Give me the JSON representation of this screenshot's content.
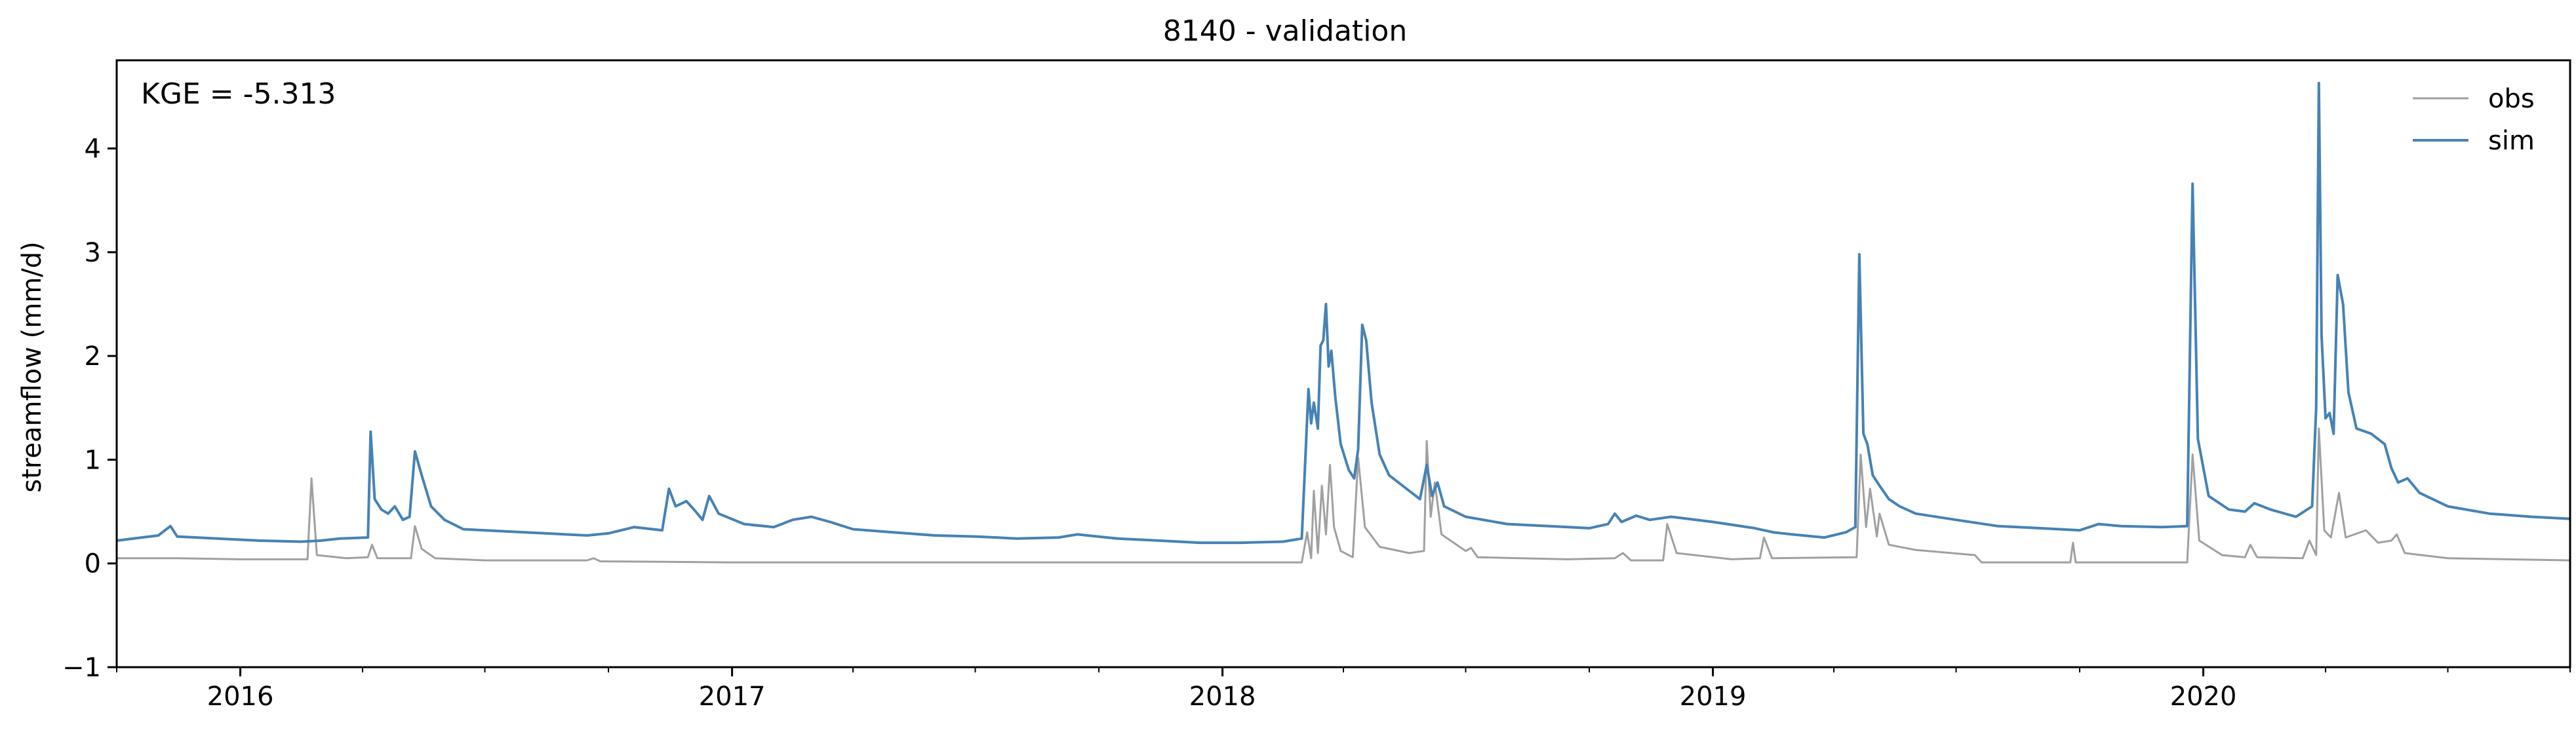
{
  "chart_data": {
    "type": "line",
    "title": "8140 - validation",
    "xlabel": "",
    "ylabel": "streamflow (mm/d)",
    "xlim": [
      "2015-10-01",
      "2020-09-30"
    ],
    "ylim": [
      -1,
      4.85
    ],
    "yticks": [
      -1,
      0,
      1,
      2,
      3,
      4
    ],
    "ytick_labels": [
      "−1",
      "0",
      "1",
      "2",
      "3",
      "4"
    ],
    "xticks": [
      "2016-01-01",
      "2017-01-01",
      "2018-01-01",
      "2019-01-01",
      "2020-01-01"
    ],
    "xtick_labels": [
      "2016",
      "2017",
      "2018",
      "2019",
      "2020"
    ],
    "minor_xticks": "quarterly",
    "grid": false,
    "legend_position": "top-right",
    "annotation": "KGE = -5.313",
    "series": [
      {
        "name": "obs",
        "color": "#a0a0a0",
        "points": [
          [
            "2015-10-01",
            0.05
          ],
          [
            "2015-11-15",
            0.05
          ],
          [
            "2016-01-01",
            0.04
          ],
          [
            "2016-02-20",
            0.04
          ],
          [
            "2016-02-23",
            0.82
          ],
          [
            "2016-02-27",
            0.08
          ],
          [
            "2016-03-20",
            0.05
          ],
          [
            "2016-04-05",
            0.06
          ],
          [
            "2016-04-08",
            0.18
          ],
          [
            "2016-04-12",
            0.05
          ],
          [
            "2016-05-07",
            0.05
          ],
          [
            "2016-05-10",
            0.36
          ],
          [
            "2016-05-15",
            0.14
          ],
          [
            "2016-05-25",
            0.05
          ],
          [
            "2016-07-01",
            0.03
          ],
          [
            "2016-09-15",
            0.03
          ],
          [
            "2016-09-20",
            0.05
          ],
          [
            "2016-09-25",
            0.02
          ],
          [
            "2017-01-01",
            0.01
          ],
          [
            "2017-06-01",
            0.01
          ],
          [
            "2018-01-01",
            0.01
          ],
          [
            "2018-03-01",
            0.01
          ],
          [
            "2018-03-05",
            0.3
          ],
          [
            "2018-03-08",
            0.05
          ],
          [
            "2018-03-10",
            0.7
          ],
          [
            "2018-03-13",
            0.1
          ],
          [
            "2018-03-16",
            0.75
          ],
          [
            "2018-03-19",
            0.28
          ],
          [
            "2018-03-22",
            0.95
          ],
          [
            "2018-03-25",
            0.35
          ],
          [
            "2018-03-30",
            0.12
          ],
          [
            "2018-04-08",
            0.06
          ],
          [
            "2018-04-12",
            1.02
          ],
          [
            "2018-04-17",
            0.35
          ],
          [
            "2018-04-28",
            0.16
          ],
          [
            "2018-05-20",
            0.1
          ],
          [
            "2018-05-31",
            0.12
          ],
          [
            "2018-06-02",
            1.18
          ],
          [
            "2018-06-05",
            0.45
          ],
          [
            "2018-06-08",
            0.78
          ],
          [
            "2018-06-13",
            0.28
          ],
          [
            "2018-07-01",
            0.12
          ],
          [
            "2018-07-05",
            0.15
          ],
          [
            "2018-07-10",
            0.06
          ],
          [
            "2018-09-15",
            0.04
          ],
          [
            "2018-10-20",
            0.05
          ],
          [
            "2018-10-26",
            0.1
          ],
          [
            "2018-11-01",
            0.03
          ],
          [
            "2018-11-25",
            0.03
          ],
          [
            "2018-11-28",
            0.38
          ],
          [
            "2018-12-05",
            0.1
          ],
          [
            "2019-01-15",
            0.04
          ],
          [
            "2019-02-05",
            0.05
          ],
          [
            "2019-02-08",
            0.25
          ],
          [
            "2019-02-14",
            0.05
          ],
          [
            "2019-04-18",
            0.06
          ],
          [
            "2019-04-21",
            1.05
          ],
          [
            "2019-04-25",
            0.35
          ],
          [
            "2019-04-28",
            0.72
          ],
          [
            "2019-05-03",
            0.26
          ],
          [
            "2019-05-05",
            0.48
          ],
          [
            "2019-05-12",
            0.18
          ],
          [
            "2019-06-01",
            0.13
          ],
          [
            "2019-07-15",
            0.08
          ],
          [
            "2019-07-20",
            0.01
          ],
          [
            "2019-09-24",
            0.01
          ],
          [
            "2019-09-26",
            0.2
          ],
          [
            "2019-09-28",
            0.01
          ],
          [
            "2019-12-20",
            0.01
          ],
          [
            "2019-12-24",
            1.05
          ],
          [
            "2019-12-29",
            0.22
          ],
          [
            "2020-01-15",
            0.08
          ],
          [
            "2020-02-01",
            0.06
          ],
          [
            "2020-02-05",
            0.18
          ],
          [
            "2020-02-10",
            0.06
          ],
          [
            "2020-03-15",
            0.05
          ],
          [
            "2020-03-20",
            0.22
          ],
          [
            "2020-03-25",
            0.08
          ],
          [
            "2020-03-27",
            1.3
          ],
          [
            "2020-03-31",
            0.32
          ],
          [
            "2020-04-05",
            0.25
          ],
          [
            "2020-04-11",
            0.68
          ],
          [
            "2020-04-16",
            0.25
          ],
          [
            "2020-05-01",
            0.32
          ],
          [
            "2020-05-10",
            0.2
          ],
          [
            "2020-05-20",
            0.22
          ],
          [
            "2020-05-24",
            0.28
          ],
          [
            "2020-05-30",
            0.1
          ],
          [
            "2020-07-01",
            0.05
          ],
          [
            "2020-09-30",
            0.03
          ]
        ]
      },
      {
        "name": "sim",
        "color": "#4682b4",
        "points": [
          [
            "2015-10-01",
            0.22
          ],
          [
            "2015-11-01",
            0.27
          ],
          [
            "2015-11-10",
            0.36
          ],
          [
            "2015-11-15",
            0.26
          ],
          [
            "2015-12-15",
            0.24
          ],
          [
            "2016-01-15",
            0.22
          ],
          [
            "2016-02-15",
            0.21
          ],
          [
            "2016-03-01",
            0.22
          ],
          [
            "2016-03-15",
            0.24
          ],
          [
            "2016-04-05",
            0.25
          ],
          [
            "2016-04-07",
            1.27
          ],
          [
            "2016-04-10",
            0.62
          ],
          [
            "2016-04-15",
            0.52
          ],
          [
            "2016-04-20",
            0.48
          ],
          [
            "2016-04-25",
            0.55
          ],
          [
            "2016-05-01",
            0.42
          ],
          [
            "2016-05-06",
            0.45
          ],
          [
            "2016-05-10",
            1.08
          ],
          [
            "2016-05-15",
            0.85
          ],
          [
            "2016-05-22",
            0.55
          ],
          [
            "2016-06-01",
            0.42
          ],
          [
            "2016-06-15",
            0.33
          ],
          [
            "2016-07-15",
            0.31
          ],
          [
            "2016-08-15",
            0.29
          ],
          [
            "2016-09-15",
            0.27
          ],
          [
            "2016-10-01",
            0.29
          ],
          [
            "2016-10-20",
            0.35
          ],
          [
            "2016-11-10",
            0.32
          ],
          [
            "2016-11-15",
            0.72
          ],
          [
            "2016-11-20",
            0.55
          ],
          [
            "2016-11-28",
            0.6
          ],
          [
            "2016-12-05",
            0.5
          ],
          [
            "2016-12-10",
            0.42
          ],
          [
            "2016-12-15",
            0.65
          ],
          [
            "2016-12-22",
            0.48
          ],
          [
            "2017-01-10",
            0.38
          ],
          [
            "2017-02-01",
            0.35
          ],
          [
            "2017-02-15",
            0.42
          ],
          [
            "2017-03-01",
            0.45
          ],
          [
            "2017-03-15",
            0.4
          ],
          [
            "2017-04-01",
            0.33
          ],
          [
            "2017-05-01",
            0.3
          ],
          [
            "2017-06-01",
            0.27
          ],
          [
            "2017-07-01",
            0.26
          ],
          [
            "2017-08-01",
            0.24
          ],
          [
            "2017-09-01",
            0.25
          ],
          [
            "2017-09-15",
            0.28
          ],
          [
            "2017-10-15",
            0.24
          ],
          [
            "2017-11-15",
            0.22
          ],
          [
            "2017-12-15",
            0.2
          ],
          [
            "2018-01-15",
            0.2
          ],
          [
            "2018-02-15",
            0.21
          ],
          [
            "2018-03-01",
            0.24
          ],
          [
            "2018-03-04",
            1.1
          ],
          [
            "2018-03-06",
            1.68
          ],
          [
            "2018-03-08",
            1.35
          ],
          [
            "2018-03-10",
            1.55
          ],
          [
            "2018-03-13",
            1.3
          ],
          [
            "2018-03-15",
            2.1
          ],
          [
            "2018-03-17",
            2.15
          ],
          [
            "2018-03-19",
            2.5
          ],
          [
            "2018-03-21",
            1.9
          ],
          [
            "2018-03-23",
            2.05
          ],
          [
            "2018-03-26",
            1.6
          ],
          [
            "2018-03-30",
            1.15
          ],
          [
            "2018-04-05",
            0.9
          ],
          [
            "2018-04-09",
            0.82
          ],
          [
            "2018-04-12",
            1.1
          ],
          [
            "2018-04-15",
            2.3
          ],
          [
            "2018-04-18",
            2.15
          ],
          [
            "2018-04-22",
            1.55
          ],
          [
            "2018-04-28",
            1.05
          ],
          [
            "2018-05-05",
            0.85
          ],
          [
            "2018-05-12",
            0.78
          ],
          [
            "2018-05-20",
            0.7
          ],
          [
            "2018-05-28",
            0.62
          ],
          [
            "2018-06-02",
            0.95
          ],
          [
            "2018-06-06",
            0.65
          ],
          [
            "2018-06-10",
            0.78
          ],
          [
            "2018-06-15",
            0.55
          ],
          [
            "2018-07-01",
            0.45
          ],
          [
            "2018-08-01",
            0.38
          ],
          [
            "2018-09-01",
            0.36
          ],
          [
            "2018-10-01",
            0.34
          ],
          [
            "2018-10-15",
            0.38
          ],
          [
            "2018-10-20",
            0.48
          ],
          [
            "2018-10-25",
            0.4
          ],
          [
            "2018-11-05",
            0.46
          ],
          [
            "2018-11-15",
            0.42
          ],
          [
            "2018-12-01",
            0.45
          ],
          [
            "2019-01-01",
            0.4
          ],
          [
            "2019-02-01",
            0.34
          ],
          [
            "2019-02-15",
            0.3
          ],
          [
            "2019-03-01",
            0.28
          ],
          [
            "2019-03-25",
            0.25
          ],
          [
            "2019-04-10",
            0.3
          ],
          [
            "2019-04-17",
            0.35
          ],
          [
            "2019-04-20",
            2.98
          ],
          [
            "2019-04-23",
            1.25
          ],
          [
            "2019-04-26",
            1.15
          ],
          [
            "2019-04-30",
            0.85
          ],
          [
            "2019-05-05",
            0.75
          ],
          [
            "2019-05-12",
            0.62
          ],
          [
            "2019-05-20",
            0.55
          ],
          [
            "2019-06-01",
            0.48
          ],
          [
            "2019-07-01",
            0.42
          ],
          [
            "2019-08-01",
            0.36
          ],
          [
            "2019-09-01",
            0.34
          ],
          [
            "2019-10-01",
            0.32
          ],
          [
            "2019-10-15",
            0.38
          ],
          [
            "2019-11-01",
            0.36
          ],
          [
            "2019-12-01",
            0.35
          ],
          [
            "2019-12-20",
            0.36
          ],
          [
            "2019-12-24",
            3.66
          ],
          [
            "2019-12-28",
            1.2
          ],
          [
            "2020-01-05",
            0.65
          ],
          [
            "2020-01-20",
            0.52
          ],
          [
            "2020-02-01",
            0.5
          ],
          [
            "2020-02-08",
            0.58
          ],
          [
            "2020-02-20",
            0.52
          ],
          [
            "2020-03-10",
            0.45
          ],
          [
            "2020-03-22",
            0.55
          ],
          [
            "2020-03-25",
            1.5
          ],
          [
            "2020-03-27",
            4.63
          ],
          [
            "2020-03-29",
            2.2
          ],
          [
            "2020-04-01",
            1.4
          ],
          [
            "2020-04-04",
            1.45
          ],
          [
            "2020-04-07",
            1.25
          ],
          [
            "2020-04-10",
            2.78
          ],
          [
            "2020-04-14",
            2.5
          ],
          [
            "2020-04-18",
            1.65
          ],
          [
            "2020-04-24",
            1.3
          ],
          [
            "2020-05-05",
            1.25
          ],
          [
            "2020-05-15",
            1.15
          ],
          [
            "2020-05-20",
            0.92
          ],
          [
            "2020-05-25",
            0.78
          ],
          [
            "2020-06-01",
            0.82
          ],
          [
            "2020-06-10",
            0.68
          ],
          [
            "2020-07-01",
            0.55
          ],
          [
            "2020-08-01",
            0.48
          ],
          [
            "2020-09-01",
            0.45
          ],
          [
            "2020-09-30",
            0.43
          ]
        ]
      }
    ]
  }
}
